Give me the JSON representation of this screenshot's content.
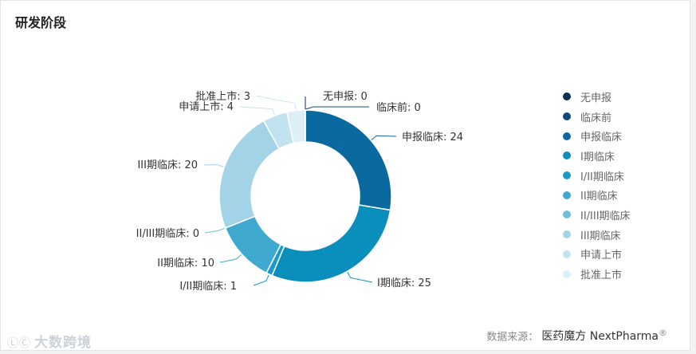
{
  "page": {
    "title": "研发阶段"
  },
  "chart_data": {
    "type": "pie",
    "variant": "donut",
    "title": "研发阶段",
    "categories": [
      "无申报",
      "临床前",
      "申报临床",
      "I期临床",
      "I/II期临床",
      "II期临床",
      "II/III期临床",
      "III期临床",
      "申请上市",
      "批准上市"
    ],
    "values": [
      0,
      0,
      24,
      25,
      1,
      10,
      0,
      20,
      4,
      3
    ],
    "colors": [
      "#0b2f55",
      "#0d4a80",
      "#0a6aa0",
      "#0a8fbc",
      "#1a9ac6",
      "#3fa9cf",
      "#6fbedb",
      "#a3d3e6",
      "#c3e2ef",
      "#dceff6"
    ],
    "labels": [
      "无申报: 0",
      "临床前: 0",
      "申报临床: 24",
      "I期临床: 25",
      "I/II期临床: 1",
      "II期临床: 10",
      "II/III期临床: 0",
      "III期临床: 20",
      "申请上市: 4",
      "批准上市: 3"
    ],
    "legend_position": "right"
  },
  "footer": {
    "source_label": "数据来源：",
    "source_name": "医药魔方 NextPharma",
    "registered": "®"
  },
  "watermark": {
    "text": "大数跨境",
    "logo": "ⓁⒸ"
  }
}
